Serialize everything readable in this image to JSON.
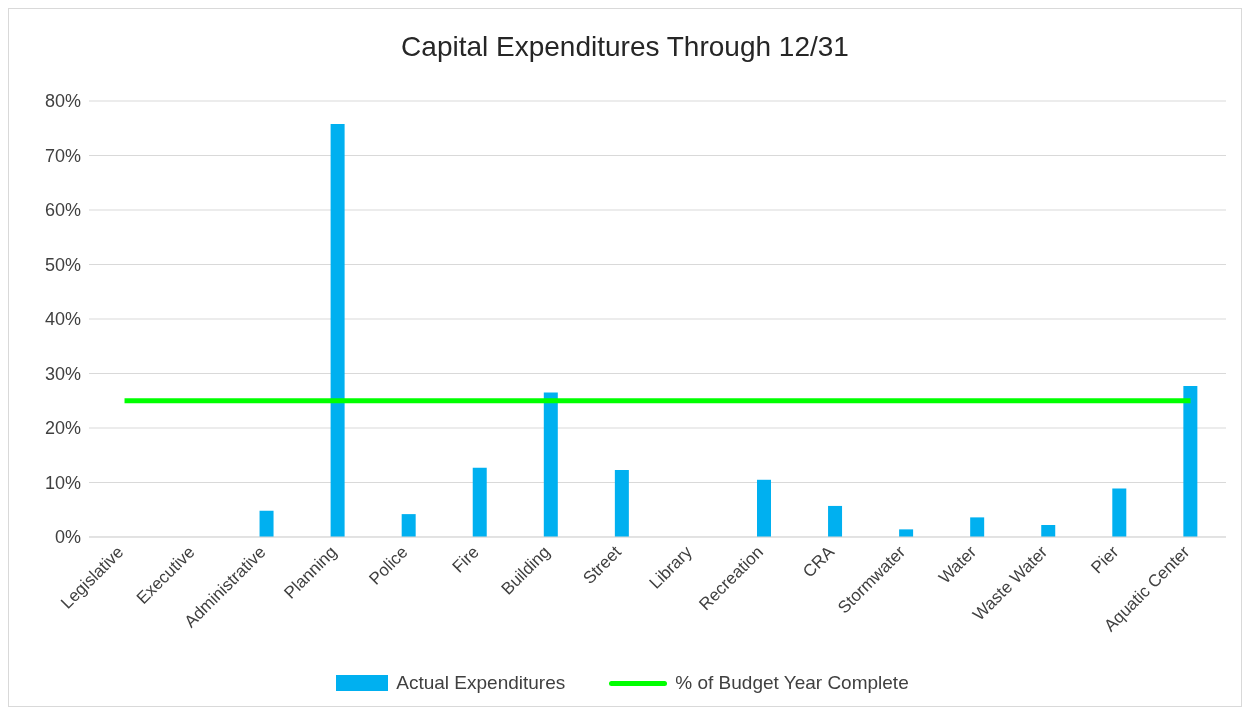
{
  "chart_data": {
    "type": "bar",
    "title": "Capital Expenditures Through 12/31",
    "categories": [
      "Legislative",
      "Executive",
      "Administrative",
      "Planning",
      "Police",
      "Fire",
      "Building",
      "Street",
      "Library",
      "Recreation",
      "CRA",
      "Stormwater",
      "Water",
      "Waste Water",
      "Pier",
      "Aquatic Center"
    ],
    "series": [
      {
        "name": "Actual Expenditures",
        "color": "#00b0f0",
        "values": [
          0,
          0,
          4.8,
          75.8,
          4.2,
          12.7,
          26.5,
          12.3,
          0,
          10.5,
          5.7,
          1.4,
          3.6,
          2.2,
          8.9,
          27.7
        ]
      },
      {
        "name": "% of Budget Year Complete",
        "type": "line",
        "color": "#00ff00",
        "values": [
          25,
          25,
          25,
          25,
          25,
          25,
          25,
          25,
          25,
          25,
          25,
          25,
          25,
          25,
          25,
          25
        ]
      }
    ],
    "ylim": [
      0,
      80
    ],
    "yticks": [
      {
        "value": 0,
        "label": "0%"
      },
      {
        "value": 10,
        "label": "10%"
      },
      {
        "value": 20,
        "label": "20%"
      },
      {
        "value": 30,
        "label": "30%"
      },
      {
        "value": 40,
        "label": "40%"
      },
      {
        "value": 50,
        "label": "50%"
      },
      {
        "value": 60,
        "label": "60%"
      },
      {
        "value": 70,
        "label": "70%"
      },
      {
        "value": 80,
        "label": "80%"
      }
    ],
    "grid": "y",
    "legend": "bottom",
    "marker": "none",
    "line_style": "solid"
  }
}
